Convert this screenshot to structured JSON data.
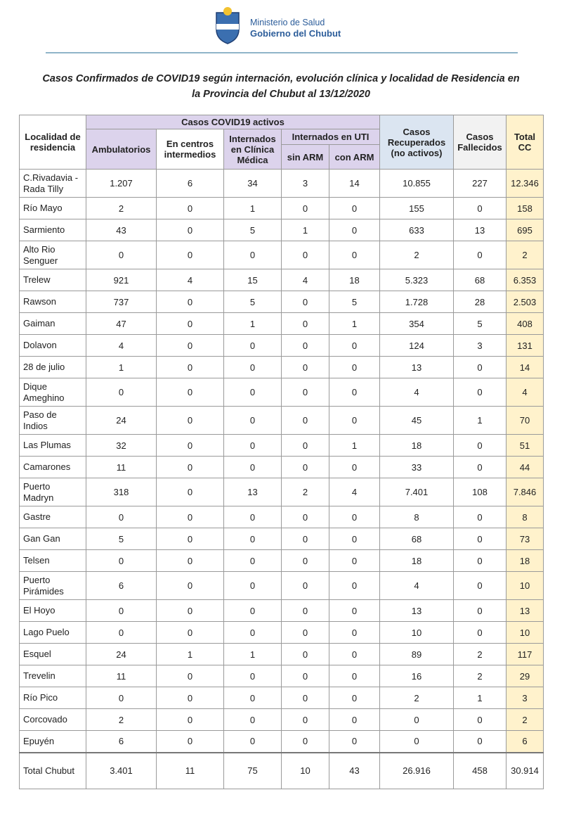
{
  "header": {
    "ministry": "Ministerio de Salud",
    "government": "Gobierno del Chubut"
  },
  "title": {
    "line1": "Casos Confirmados de COVID19 según internación, evolución clínica y localidad de Residencia en",
    "line2": "la Provincia del Chubut al 13/12/2020"
  },
  "table": {
    "columns": {
      "locality": "Localidad de residencia",
      "active": "Casos COVID19 activos",
      "ambulatory": "Ambulatorios",
      "intermediate": "En centros intermedios",
      "clinic": "Internados en Clínica Médica",
      "icu": "Internados en UTI",
      "no_arm": "sin ARM",
      "arm": "con ARM",
      "recovered": "Casos Recuperados (no activos)",
      "deceased": "Casos Fallecidos",
      "total": "Total CC"
    },
    "rows": [
      [
        "C.Rivadavia - Rada Tilly",
        "1.207",
        "6",
        "34",
        "3",
        "14",
        "10.855",
        "227",
        "12.346"
      ],
      [
        "Río Mayo",
        "2",
        "0",
        "1",
        "0",
        "0",
        "155",
        "0",
        "158"
      ],
      [
        "Sarmiento",
        "43",
        "0",
        "5",
        "1",
        "0",
        "633",
        "13",
        "695"
      ],
      [
        "Alto Rio Senguer",
        "0",
        "0",
        "0",
        "0",
        "0",
        "2",
        "0",
        "2"
      ],
      [
        "Trelew",
        "921",
        "4",
        "15",
        "4",
        "18",
        "5.323",
        "68",
        "6.353"
      ],
      [
        "Rawson",
        "737",
        "0",
        "5",
        "0",
        "5",
        "1.728",
        "28",
        "2.503"
      ],
      [
        "Gaiman",
        "47",
        "0",
        "1",
        "0",
        "1",
        "354",
        "5",
        "408"
      ],
      [
        "Dolavon",
        "4",
        "0",
        "0",
        "0",
        "0",
        "124",
        "3",
        "131"
      ],
      [
        "28 de julio",
        "1",
        "0",
        "0",
        "0",
        "0",
        "13",
        "0",
        "14"
      ],
      [
        "Dique Ameghino",
        "0",
        "0",
        "0",
        "0",
        "0",
        "4",
        "0",
        "4"
      ],
      [
        "Paso de Indios",
        "24",
        "0",
        "0",
        "0",
        "0",
        "45",
        "1",
        "70"
      ],
      [
        "Las Plumas",
        "32",
        "0",
        "0",
        "0",
        "1",
        "18",
        "0",
        "51"
      ],
      [
        "Camarones",
        "11",
        "0",
        "0",
        "0",
        "0",
        "33",
        "0",
        "44"
      ],
      [
        "Puerto Madryn",
        "318",
        "0",
        "13",
        "2",
        "4",
        "7.401",
        "108",
        "7.846"
      ],
      [
        "Gastre",
        "0",
        "0",
        "0",
        "0",
        "0",
        "8",
        "0",
        "8"
      ],
      [
        "Gan Gan",
        "5",
        "0",
        "0",
        "0",
        "0",
        "68",
        "0",
        "73"
      ],
      [
        "Telsen",
        "0",
        "0",
        "0",
        "0",
        "0",
        "18",
        "0",
        "18"
      ],
      [
        "Puerto Pirámides",
        "6",
        "0",
        "0",
        "0",
        "0",
        "4",
        "0",
        "10"
      ],
      [
        "El Hoyo",
        "0",
        "0",
        "0",
        "0",
        "0",
        "13",
        "0",
        "13"
      ],
      [
        "Lago Puelo",
        "0",
        "0",
        "0",
        "0",
        "0",
        "10",
        "0",
        "10"
      ],
      [
        "Esquel",
        "24",
        "1",
        "1",
        "0",
        "0",
        "89",
        "2",
        "117"
      ],
      [
        "Trevelin",
        "11",
        "0",
        "0",
        "0",
        "0",
        "16",
        "2",
        "29"
      ],
      [
        "Río Pico",
        "0",
        "0",
        "0",
        "0",
        "0",
        "2",
        "1",
        "3"
      ],
      [
        "Corcovado",
        "2",
        "0",
        "0",
        "0",
        "0",
        "0",
        "0",
        "2"
      ],
      [
        "Epuyén",
        "6",
        "0",
        "0",
        "0",
        "0",
        "0",
        "0",
        "6"
      ]
    ],
    "total": [
      "Total Chubut",
      "3.401",
      "11",
      "75",
      "10",
      "43",
      "26.916",
      "458",
      "30.914"
    ]
  }
}
